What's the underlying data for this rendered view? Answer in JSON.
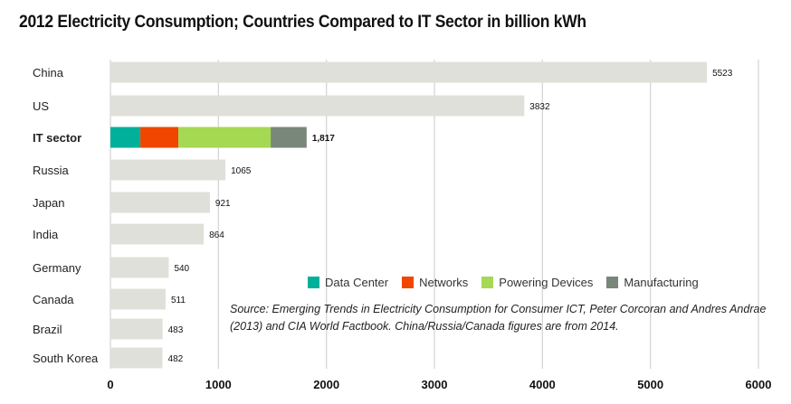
{
  "chart_data": {
    "type": "bar",
    "orientation": "horizontal",
    "title": "2012 Electricity Consumption; Countries Compared to IT Sector in billion kWh",
    "xlabel": "",
    "ylabel": "",
    "xlim": [
      0,
      6000
    ],
    "xticks": [
      0,
      1000,
      2000,
      3000,
      4000,
      5000,
      6000
    ],
    "grid": true,
    "categories": [
      "China",
      "US",
      "IT sector",
      "Russia",
      "Japan",
      "India",
      "Germany",
      "Canada",
      "Brazil",
      "South Korea"
    ],
    "values": [
      5523,
      3832,
      1817,
      1065,
      921,
      864,
      540,
      511,
      483,
      482
    ],
    "value_labels": [
      "5523",
      "3832",
      "1,817",
      "1065",
      "921",
      "864",
      "540",
      "511",
      "483",
      "482"
    ],
    "highlight_category": "IT sector",
    "stacked_breakdown": {
      "category": "IT sector",
      "series": [
        {
          "name": "Data Center",
          "value": 277,
          "color": "#00b09b"
        },
        {
          "name": "Networks",
          "value": 352,
          "color": "#f04600"
        },
        {
          "name": "Powering Devices",
          "value": 855,
          "color": "#a5d853"
        },
        {
          "name": "Manufacturing",
          "value": 333,
          "color": "#78877a"
        }
      ]
    },
    "bar_color": "#e0e0da",
    "legend": {
      "position": "bottom-right",
      "entries": [
        "Data Center",
        "Networks",
        "Powering Devices",
        "Manufacturing"
      ]
    },
    "annotation": "Source: Emerging Trends in Electricity Consumption for Consumer ICT, Peter Corcoran and Andres Andrae (2013) and CIA World Factbook. China/Russia/Canada figures are from 2014."
  }
}
